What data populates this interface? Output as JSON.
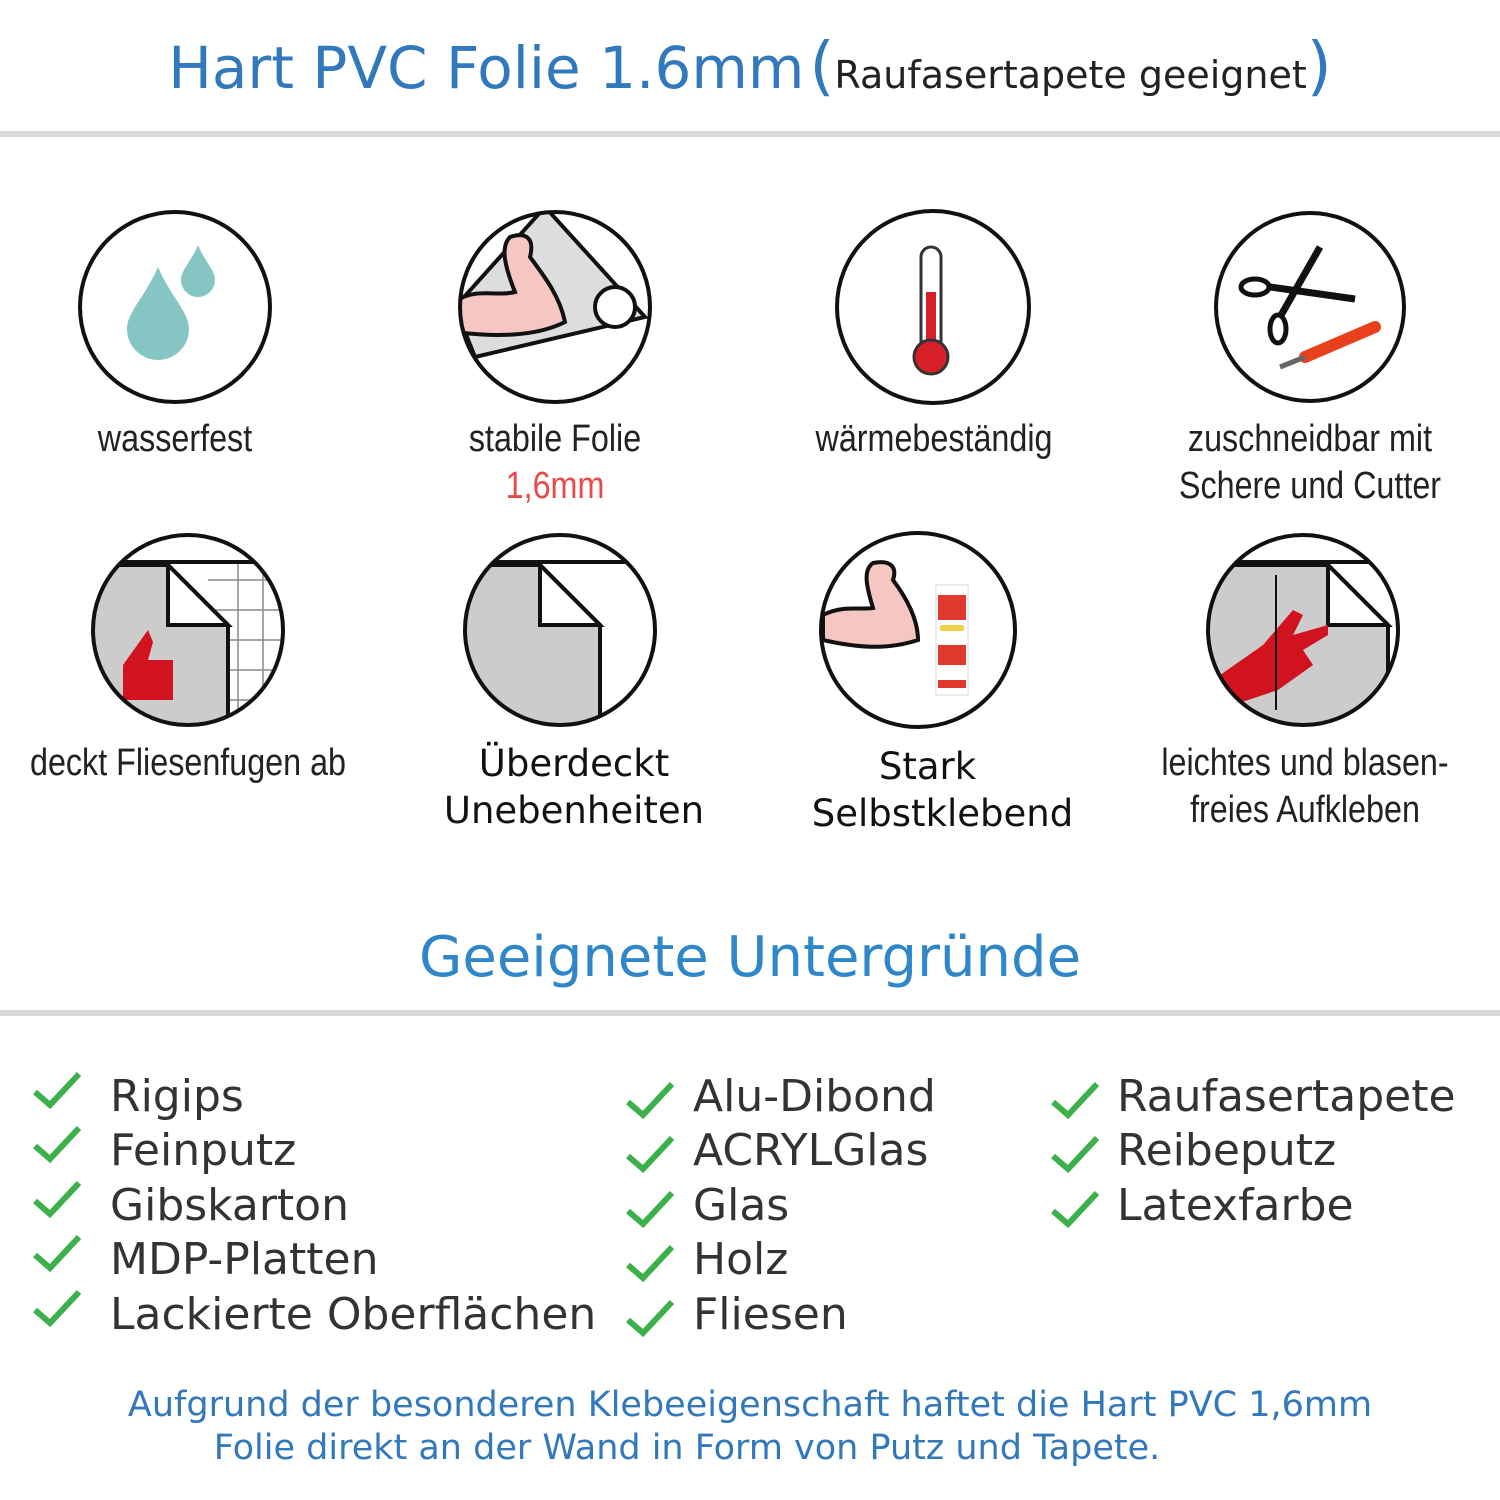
{
  "header": {
    "title": "Hart PVC Folie 1.6mm",
    "subtitle_open": "(",
    "subtitle": "Raufasertapete geeignet",
    "subtitle_close": ")",
    "color": "#3278bd"
  },
  "features": [
    {
      "icon": "water-drops-icon",
      "lines": [
        "wasserfest"
      ]
    },
    {
      "icon": "strong-arm-foil-icon",
      "lines": [
        "stabile Folie"
      ],
      "highlight": "1,6mm"
    },
    {
      "icon": "thermometer-icon",
      "lines": [
        "wärmebeständig"
      ]
    },
    {
      "icon": "scissors-cutter-icon",
      "lines": [
        "zuschneidbar mit",
        "Schere und Cutter"
      ]
    },
    {
      "icon": "thumbs-up-tiles-icon",
      "lines": [
        "deckt Fliesenfugen ab"
      ]
    },
    {
      "icon": "foil-peel-icon",
      "lines": [
        "Überdeckt",
        "Unebenheiten"
      ]
    },
    {
      "icon": "strong-arm-glue-icon",
      "lines": [
        "Stark",
        "Selbstklebend"
      ]
    },
    {
      "icon": "hand-smoothing-icon",
      "lines": [
        "leichtes und blasen-",
        "freies Aufkleben"
      ]
    }
  ],
  "surfaces": {
    "heading": "Geeignete Untergründe",
    "check_color": "#3cb04a",
    "columns": [
      [
        "Rigips",
        "Feinputz",
        "Gibskarton",
        "MDP-Platten",
        "Lackierte Oberflächen"
      ],
      [
        "Alu-Dibond",
        "ACRYLGlas",
        "Glas",
        "Holz",
        "Fliesen"
      ],
      [
        "Raufasertapete",
        "Reibeputz",
        "Latexfarbe"
      ]
    ]
  },
  "footer": {
    "lines": [
      "Aufgrund der besonderen Klebeeigenschaft haftet die Hart PVC 1,6mm",
      "Folie direkt an der Wand in Form von Putz und Tapete."
    ]
  }
}
